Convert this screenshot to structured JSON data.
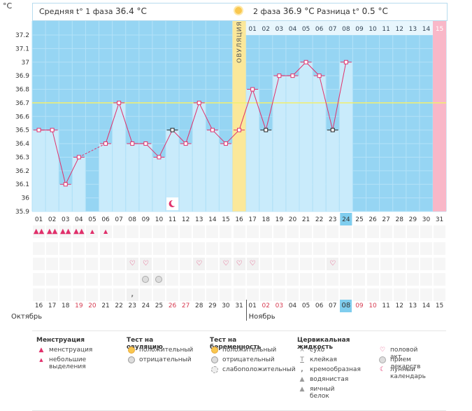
{
  "header": {
    "unit": "°C",
    "phase1_label": "Средняя t° 1 фаза",
    "phase1_value": "36.4 °C",
    "phase2_label": "2 фаза",
    "phase2_value": "36.9 °C",
    "diff_label": "Разница t°",
    "diff_value": "0.5 °C",
    "ovulation_label": "ОВУЛЯЦИЯ"
  },
  "colors": {
    "background": "#96d5f3",
    "bar": "#c9ebfb",
    "line": "#e0306b",
    "ovulation": "#fbe89a",
    "coverline": "#f2ef6e",
    "future": "#f9b7c8"
  },
  "phase2_cycle_days": [
    "01",
    "02",
    "03",
    "04",
    "05",
    "06",
    "07",
    "08",
    "09",
    "10",
    "11",
    "12",
    "13",
    "14",
    "15"
  ],
  "chart_data": {
    "type": "line",
    "ylabel": "°C",
    "ylim": [
      35.9,
      37.2
    ],
    "y_ticks": [
      "35.9",
      "36",
      "36.1",
      "36.2",
      "36.3",
      "36.4",
      "36.5",
      "36.6",
      "36.7",
      "36.8",
      "36.9",
      "37",
      "37.1",
      "37.2"
    ],
    "coverline": 36.7,
    "x_days": [
      "01",
      "02",
      "03",
      "04",
      "05",
      "06",
      "07",
      "08",
      "09",
      "10",
      "11",
      "12",
      "13",
      "14",
      "15",
      "16",
      "17",
      "18",
      "19",
      "20",
      "21",
      "22",
      "23",
      "24",
      "25",
      "26",
      "27",
      "28",
      "29",
      "30",
      "31"
    ],
    "current_day": "24",
    "temps": [
      36.5,
      36.5,
      36.1,
      36.3,
      null,
      36.4,
      36.7,
      36.4,
      36.4,
      36.3,
      36.5,
      36.4,
      36.7,
      36.5,
      36.4,
      36.5,
      36.8,
      36.5,
      36.9,
      36.9,
      37.0,
      36.9,
      36.5,
      37.0,
      null,
      null,
      null,
      null,
      null,
      null,
      null
    ],
    "black_markers_days": [
      "11",
      "18",
      "23"
    ],
    "ovulation_day": "16",
    "future_day": "31"
  },
  "calendar": {
    "oct_dates": [
      "16",
      "17",
      "18",
      "19",
      "20",
      "21",
      "22",
      "23",
      "24",
      "25",
      "26",
      "27",
      "28",
      "29",
      "30",
      "31"
    ],
    "nov_dates": [
      "01",
      "02",
      "03",
      "04",
      "05",
      "06",
      "07",
      "08",
      "09",
      "10",
      "11",
      "12",
      "13",
      "14",
      "15"
    ],
    "weekend_dates": [
      "19",
      "20",
      "26",
      "27",
      "02",
      "03",
      "09",
      "10"
    ],
    "current_date": "08",
    "month1": "Октябрь",
    "month2": "Ноябрь"
  },
  "events": {
    "menstruation_heavy": [
      "01",
      "02",
      "03",
      "04"
    ],
    "menstruation_light": [
      "01",
      "02",
      "03",
      "04",
      "05",
      "06"
    ],
    "intercourse": [
      "08",
      "09",
      "13",
      "15",
      "16",
      "17",
      "23"
    ],
    "pregnancy_negative": [
      "09",
      "10"
    ],
    "cervical_creamy": [
      "08"
    ],
    "lunar": [
      "11"
    ]
  },
  "legend": {
    "groups": [
      {
        "title": "Менструация",
        "items": [
          {
            "icon": "drop-heavy-icon",
            "label": "менструация"
          },
          {
            "icon": "drop-light-icon",
            "label": "небольшие выделения"
          }
        ]
      },
      {
        "title": "Тест на овуляцию",
        "items": [
          {
            "icon": "sun-positive-icon",
            "label": "положительный"
          },
          {
            "icon": "circle-negative-icon",
            "label": "отрицательный"
          }
        ]
      },
      {
        "title": "Тест на беременность",
        "items": [
          {
            "icon": "sun-positive-icon",
            "label": "положительный"
          },
          {
            "icon": "circle-negative-icon",
            "label": "отрицательный"
          },
          {
            "icon": "circle-weak-icon",
            "label": "слабоположительный"
          }
        ]
      },
      {
        "title": "Цервикальная жидкость",
        "items": [
          {
            "icon": "cross-icon",
            "label": "сухо"
          },
          {
            "icon": "t-icon",
            "label": "клейкая"
          },
          {
            "icon": "comma-icon",
            "label": "кремообразная"
          },
          {
            "icon": "drop-gray-icon",
            "label": "водянистая"
          },
          {
            "icon": "drop-gray-icon",
            "label": "яичный белок"
          }
        ]
      },
      {
        "title": "",
        "items": [
          {
            "icon": "heart-icon",
            "label": "половой акт"
          },
          {
            "icon": "pill-icon",
            "label": "прием лекарств"
          },
          {
            "icon": "moon-icon",
            "label": "лунный календарь"
          }
        ]
      }
    ]
  }
}
